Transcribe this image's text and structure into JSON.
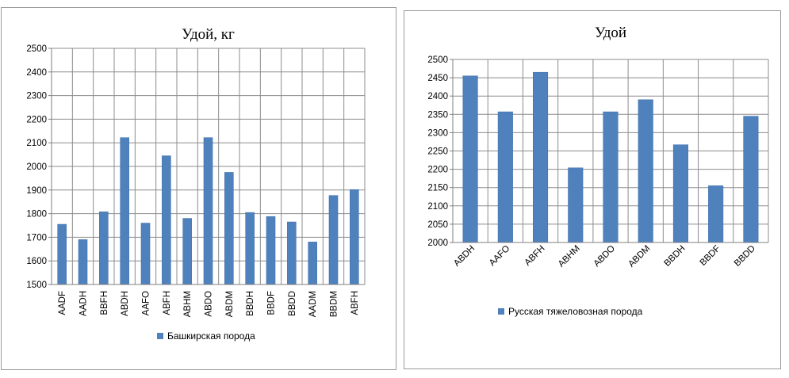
{
  "colors": {
    "bar": "#4f81bd",
    "bar_edge": "#3c6ea8",
    "grid": "#8c8c8c",
    "axis": "#7f7f7f"
  },
  "chart_data": [
    {
      "type": "bar",
      "title": "Удой, кг",
      "xlabel": "",
      "ylabel": "",
      "ylim": [
        1500,
        2500
      ],
      "yticks": [
        "1500",
        "1600",
        "1700",
        "1800",
        "1900",
        "2000",
        "2100",
        "2200",
        "2300",
        "2400",
        "2500"
      ],
      "grid": true,
      "legend_position": "bottom",
      "categories": [
        "AADF",
        "AADH",
        "BBFH",
        "ABDH",
        "AAFO",
        "ABFH",
        "ABHM",
        "ABDO",
        "ABDM",
        "BBDH",
        "BBDF",
        "BBDD",
        "AADM",
        "BBDM",
        "ABFH"
      ],
      "series": [
        {
          "name": "Башкирская порода",
          "values": [
            1755,
            1690,
            1808,
            2122,
            1760,
            2045,
            1780,
            2122,
            1975,
            1805,
            1788,
            1765,
            1680,
            1877,
            1902
          ]
        }
      ]
    },
    {
      "type": "bar",
      "title": "Удой",
      "xlabel": "",
      "ylabel": "",
      "ylim": [
        2000,
        2500
      ],
      "yticks": [
        "2000",
        "2050",
        "2100",
        "2150",
        "2200",
        "2250",
        "2300",
        "2350",
        "2400",
        "2450",
        "2500"
      ],
      "grid": true,
      "legend_position": "bottom",
      "categories": [
        "ABDH",
        "AAFO",
        "ABFH",
        "ABHM",
        "ABDO",
        "ABDM",
        "BBDH",
        "BBDF",
        "BBDD"
      ],
      "series": [
        {
          "name": "Русская тяжеловозная порода",
          "values": [
            2455,
            2357,
            2465,
            2204,
            2357,
            2390,
            2267,
            2155,
            2345
          ]
        }
      ]
    }
  ]
}
